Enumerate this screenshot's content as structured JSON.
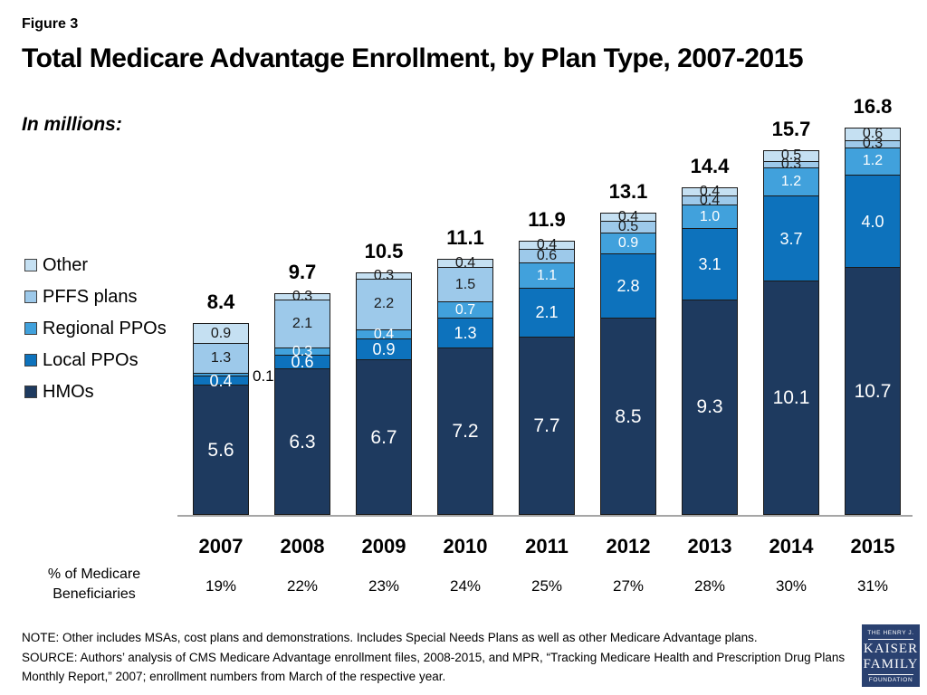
{
  "figure_label": "Figure 3",
  "title": "Total Medicare Advantage Enrollment, by Plan Type, 2007-2015",
  "units_label": "In millions:",
  "chart_data": {
    "type": "bar",
    "stacked": true,
    "unit": "millions",
    "categories": [
      "2007",
      "2008",
      "2009",
      "2010",
      "2011",
      "2012",
      "2013",
      "2014",
      "2015"
    ],
    "series": [
      {
        "name": "HMOs",
        "color": "#1e3a5f",
        "label_color": "#ffffff",
        "values": [
          5.6,
          6.3,
          6.7,
          7.2,
          7.7,
          8.5,
          9.3,
          10.1,
          10.7
        ],
        "labels": [
          "5.6",
          "6.3",
          "6.7",
          "7.2",
          "7.7",
          "8.5",
          "9.3",
          "10.1",
          "10.7"
        ]
      },
      {
        "name": "Local PPOs",
        "color": "#0d72bc",
        "label_color": "#ffffff",
        "values": [
          0.4,
          0.6,
          0.9,
          1.3,
          2.1,
          2.8,
          3.1,
          3.7,
          4.0
        ],
        "labels": [
          "0.4",
          "0.6",
          "0.9",
          "1.3",
          "2.1",
          "2.8",
          "3.1",
          "3.7",
          "4.0"
        ]
      },
      {
        "name": "Regional PPOs",
        "color": "#41a1dc",
        "label_color": "#ffffff",
        "values": [
          0.1,
          0.3,
          0.4,
          0.7,
          1.1,
          0.9,
          1.0,
          1.2,
          1.2
        ],
        "labels": [
          "",
          "0.3",
          "0.4",
          "0.7",
          "1.1",
          "0.9",
          "1.0",
          "1.2",
          "1.2"
        ]
      },
      {
        "name": "PFFS plans",
        "color": "#9dc9ea",
        "label_color": "#1a1a1a",
        "values": [
          1.3,
          2.1,
          2.2,
          1.5,
          0.6,
          0.5,
          0.4,
          0.3,
          0.3
        ],
        "labels": [
          "1.3",
          "2.1",
          "2.2",
          "1.5",
          "0.6",
          "0.5",
          "0.4",
          "0.3",
          "0.3"
        ]
      },
      {
        "name": "Other",
        "color": "#c5e0f2",
        "label_color": "#1a1a1a",
        "values": [
          0.9,
          0.3,
          0.3,
          0.4,
          0.4,
          0.4,
          0.4,
          0.5,
          0.6
        ],
        "labels": [
          "0.9",
          "0.3",
          "0.3",
          "0.4",
          "0.4",
          "0.4",
          "0.4",
          "0.5",
          "0.6"
        ]
      }
    ],
    "totals": [
      "8.4",
      "9.7",
      "10.5",
      "11.1",
      "11.9",
      "13.1",
      "14.4",
      "15.7",
      "16.8"
    ],
    "callout": {
      "category_index": 0,
      "series_index": 2,
      "text": "0.1"
    },
    "legend_order_top_to_bottom": [
      "Other",
      "PFFS plans",
      "Regional PPOs",
      "Local PPOs",
      "HMOs"
    ],
    "legend_position": "left",
    "grid": false,
    "pct_row_label": "% of Medicare\nBeneficiaries",
    "pct_values": [
      "19%",
      "22%",
      "23%",
      "24%",
      "25%",
      "27%",
      "28%",
      "30%",
      "31%"
    ]
  },
  "note": "NOTE:  Other includes MSAs, cost plans and demonstrations.  Includes Special Needs Plans as well as other Medicare Advantage plans.",
  "source": "SOURCE:  Authors’ analysis of CMS Medicare Advantage enrollment files, 2008-2015, and MPR, “Tracking Medicare Health and Prescription Drug Plans Monthly Report,” 2007; enrollment numbers from March of the respective year.",
  "logo": {
    "line1": "THE HENRY J.",
    "line2": "KAISER",
    "line3": "FAMILY",
    "line4": "FOUNDATION",
    "color": "#2a4170"
  }
}
